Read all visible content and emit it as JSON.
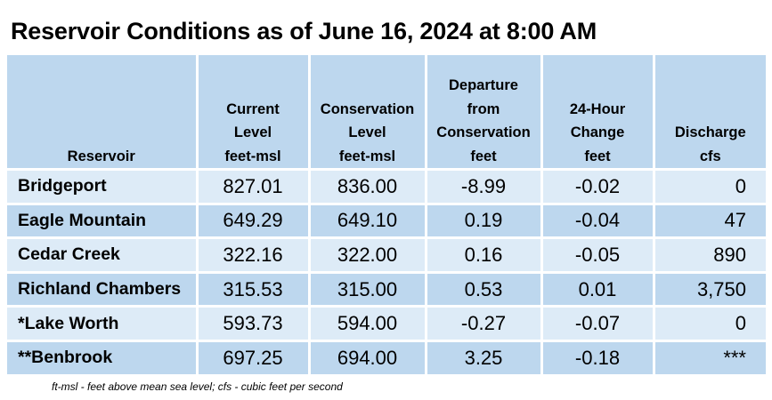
{
  "title": "Reservoir Conditions as of June 16, 2024 at 8:00 AM",
  "columns": [
    {
      "lines": [
        "",
        "",
        "",
        "Reservoir"
      ]
    },
    {
      "lines": [
        "",
        "Current",
        "Level",
        "feet-msl"
      ]
    },
    {
      "lines": [
        "",
        "Conservation",
        "Level",
        "feet-msl"
      ]
    },
    {
      "lines": [
        "Departure",
        "from",
        "Conservation",
        "feet"
      ]
    },
    {
      "lines": [
        "",
        "24-Hour",
        "Change",
        "feet"
      ]
    },
    {
      "lines": [
        "",
        "",
        "Discharge",
        "cfs"
      ]
    }
  ],
  "rows": [
    {
      "reservoir": "Bridgeport",
      "current_level": "827.01",
      "conservation_level": "836.00",
      "departure": "-8.99",
      "change_24h": "-0.02",
      "discharge": "0"
    },
    {
      "reservoir": "Eagle Mountain",
      "current_level": "649.29",
      "conservation_level": "649.10",
      "departure": "0.19",
      "change_24h": "-0.04",
      "discharge": "47"
    },
    {
      "reservoir": "Cedar Creek",
      "current_level": "322.16",
      "conservation_level": "322.00",
      "departure": "0.16",
      "change_24h": "-0.05",
      "discharge": "890"
    },
    {
      "reservoir": "Richland Chambers",
      "current_level": "315.53",
      "conservation_level": "315.00",
      "departure": "0.53",
      "change_24h": "0.01",
      "discharge": "3,750"
    },
    {
      "reservoir": "*Lake Worth",
      "current_level": "593.73",
      "conservation_level": "594.00",
      "departure": "-0.27",
      "change_24h": "-0.07",
      "discharge": "0"
    },
    {
      "reservoir": "**Benbrook",
      "current_level": "697.25",
      "conservation_level": "694.00",
      "departure": "3.25",
      "change_24h": "-0.18",
      "discharge": "***"
    }
  ],
  "footnote": "ft-msl - feet above mean sea level; cfs - cubic feet per second",
  "colors": {
    "header_bg": "#bdd7ee",
    "row_light": "#ddebf7",
    "row_dark": "#bdd7ee"
  }
}
